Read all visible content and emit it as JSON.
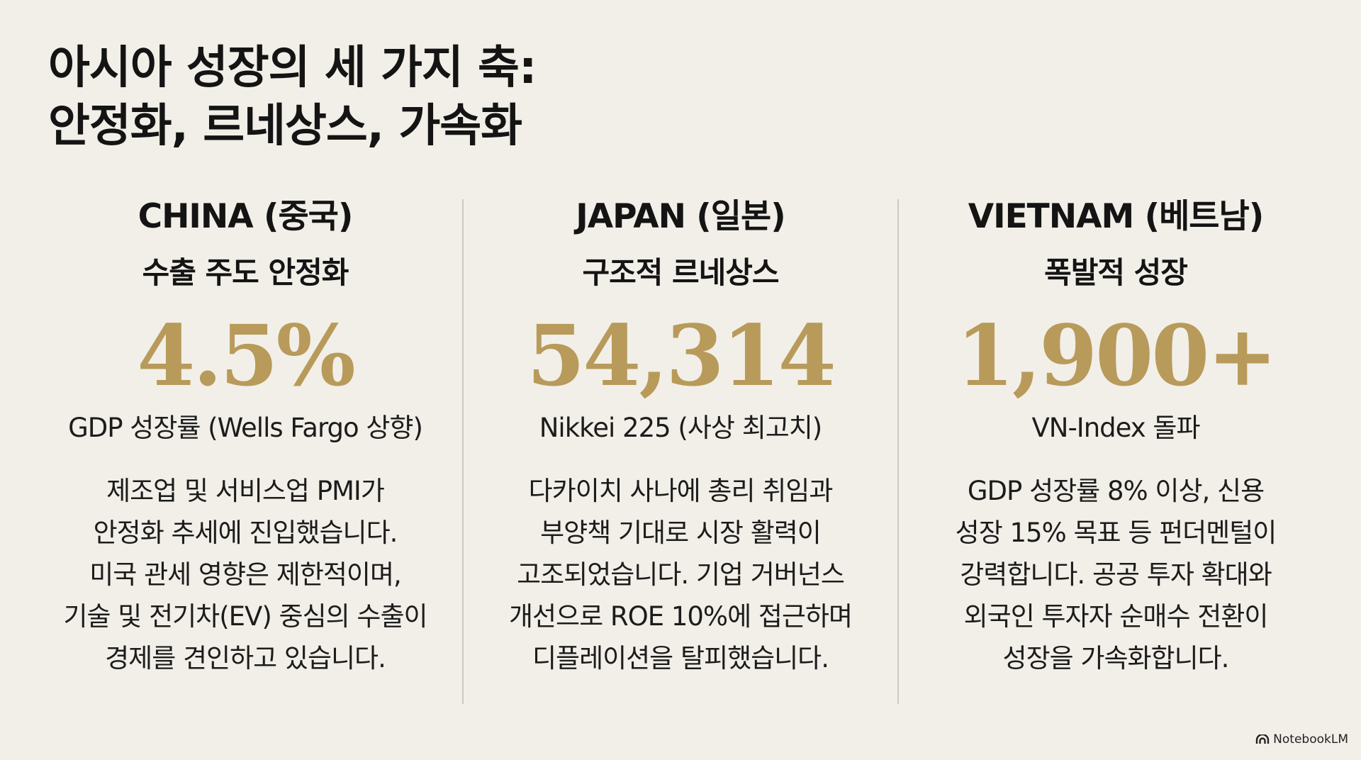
{
  "title": {
    "line1": "아시아 성장의 세 가지 축:",
    "line2": "안정화, 르네상스, 가속화"
  },
  "columns": [
    {
      "country": "CHINA (중국)",
      "subtitle": "수출 주도 안정화",
      "figure": "4.5%",
      "caption": "GDP 성장률 (Wells Fargo 상향)",
      "body": [
        "제조업 및 서비스업 PMI가",
        "안정화 추세에 진입했습니다.",
        "미국 관세 영향은 제한적이며,",
        "기술 및 전기차(EV) 중심의 수출이",
        "경제를 견인하고 있습니다."
      ]
    },
    {
      "country": "JAPAN (일본)",
      "subtitle": "구조적 르네상스",
      "figure": "54,314",
      "caption": "Nikkei 225 (사상 최고치)",
      "body": [
        "다카이치 사나에 총리 취임과",
        "부양책 기대로 시장 활력이",
        "고조되었습니다. 기업 거버넌스",
        "개선으로 ROE 10%에 접근하며",
        "디플레이션을 탈피했습니다."
      ]
    },
    {
      "country": "VIETNAM (베트남)",
      "subtitle": "폭발적 성장",
      "figure": "1,900+",
      "caption": "VN-Index 돌파",
      "body": [
        "GDP 성장률 8% 이상, 신용",
        "성장 15% 목표 등 펀더멘털이",
        "강력합니다. 공공 투자 확대와",
        "외국인 투자자 순매수 전환이",
        "성장을 가속화합니다."
      ]
    }
  ],
  "brand": {
    "label": "NotebookLM",
    "icon": "notebooklm-logo-icon"
  },
  "colors": {
    "background": "#f2efe8",
    "accent": "#b89a5a",
    "text": "#141414",
    "divider": "#cfcac2"
  }
}
